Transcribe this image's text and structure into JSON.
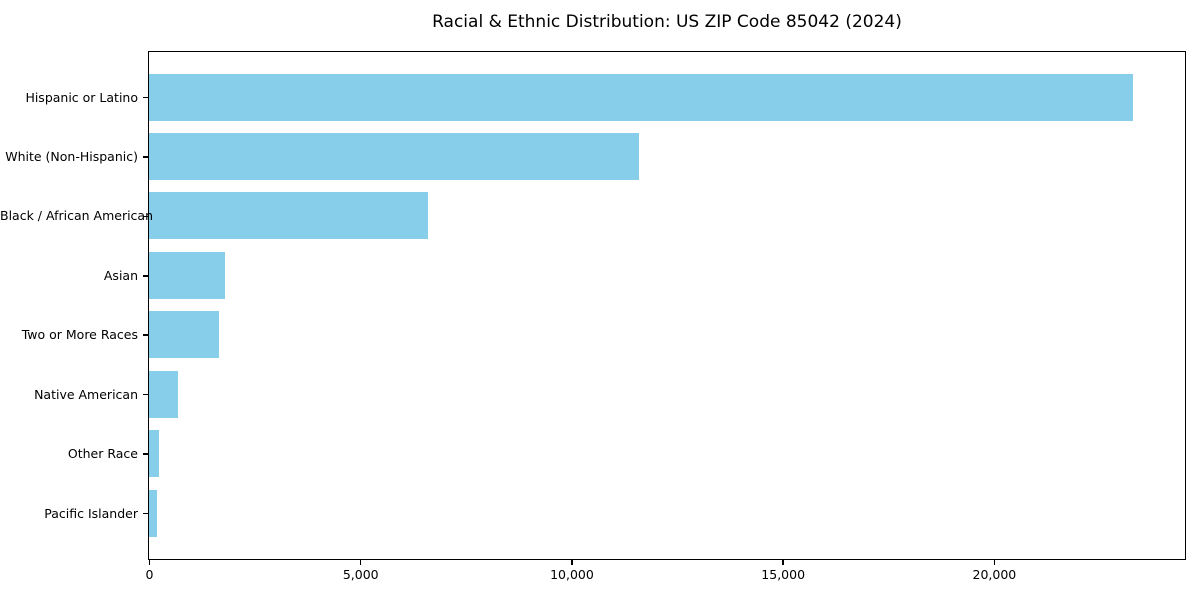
{
  "title": "Racial & Ethnic Distribution: US ZIP Code 85042 (2024)",
  "colors": {
    "bar": "#87CEEB",
    "axis": "#000000",
    "background": "#ffffff"
  },
  "chart_data": {
    "type": "bar",
    "orientation": "horizontal",
    "title": "Racial & Ethnic Distribution: US ZIP Code 85042 (2024)",
    "categories": [
      "Hispanic or Latino",
      "White (Non-Hispanic)",
      "Black / African American",
      "Asian",
      "Two or More Races",
      "Native American",
      "Other Race",
      "Pacific Islander"
    ],
    "values": [
      23300,
      11600,
      6600,
      1800,
      1650,
      680,
      230,
      200
    ],
    "xlabel": "",
    "ylabel": "",
    "xlim": [
      0,
      24500
    ],
    "xticks": [
      0,
      5000,
      10000,
      15000,
      20000
    ],
    "xtick_labels": [
      "0",
      "5,000",
      "10,000",
      "15,000",
      "20,000"
    ],
    "grid": false,
    "legend": false,
    "bar_color": "#87CEEB",
    "frame": "full-box"
  }
}
